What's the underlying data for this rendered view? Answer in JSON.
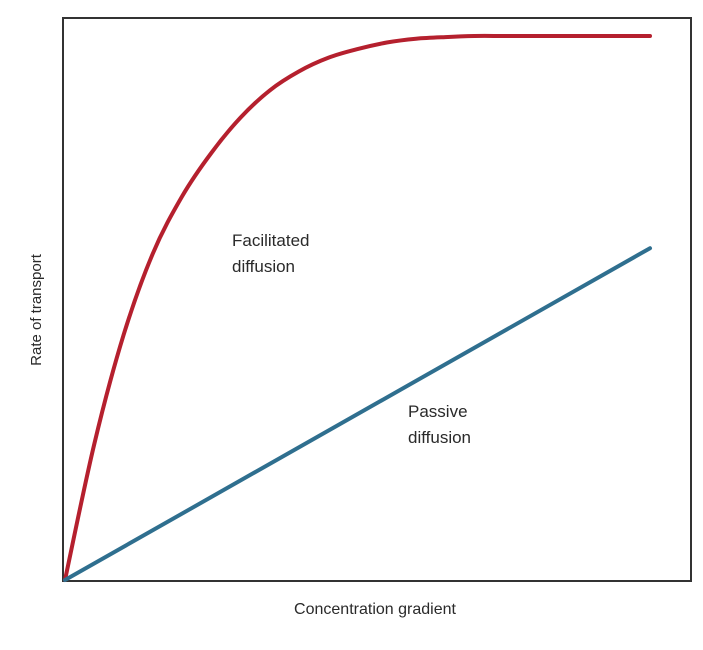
{
  "chart_data": {
    "type": "line",
    "title": "",
    "xlabel": "Concentration gradient",
    "ylabel": "Rate of transport",
    "xlim": [
      0,
      100
    ],
    "ylim": [
      0,
      100
    ],
    "grid": false,
    "legend": "none",
    "series": [
      {
        "name": "Facilitated diffusion",
        "color": "#b5202e",
        "x": [
          0,
          5,
          10,
          15,
          20,
          25,
          30,
          35,
          40,
          45,
          50,
          55,
          60,
          65,
          70,
          75,
          80,
          85,
          90,
          95,
          100
        ],
        "values": [
          0,
          25,
          45,
          60,
          70.5,
          78.5,
          85,
          90,
          93.5,
          96,
          97.6,
          98.8,
          99.5,
          99.8,
          100,
          100,
          100,
          100,
          100,
          100,
          100
        ]
      },
      {
        "name": "Passive diffusion",
        "color": "#2f6f8f",
        "x": [
          0,
          100
        ],
        "values": [
          0,
          61
        ]
      }
    ]
  }
}
